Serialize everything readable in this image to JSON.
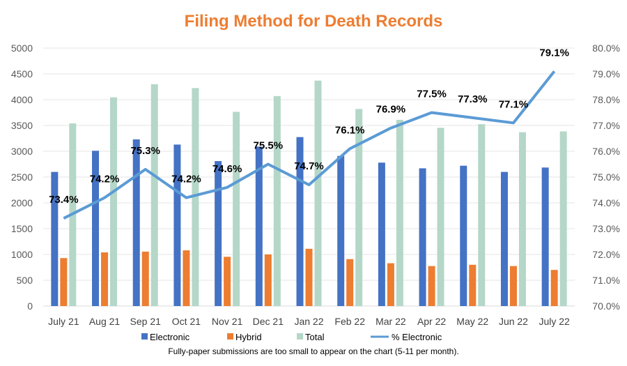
{
  "chart_data": {
    "type": "bar",
    "title": "Filing Method for Death Records",
    "footnote": "Fully-paper submissions are too small to appear on the chart (5-11 per month).",
    "categories": [
      "July 21",
      "Aug 21",
      "Sep 21",
      "Oct 21",
      "Nov 21",
      "Dec 21",
      "Jan 22",
      "Feb 22",
      "Mar 22",
      "Apr 22",
      "May 22",
      "Jun 22",
      "July 22"
    ],
    "series": [
      {
        "name": "Electronic",
        "type": "bar",
        "axis": "left",
        "color": "#4472C4",
        "values": [
          2600,
          3010,
          3230,
          3130,
          2810,
          3090,
          3275,
          2910,
          2780,
          2670,
          2720,
          2600,
          2685
        ]
      },
      {
        "name": "Hybrid",
        "type": "bar",
        "axis": "left",
        "color": "#ED7D31",
        "values": [
          930,
          1040,
          1055,
          1080,
          955,
          1000,
          1110,
          910,
          830,
          775,
          800,
          775,
          700
        ]
      },
      {
        "name": "Total",
        "type": "bar",
        "axis": "left",
        "color": "#B4D7C8",
        "values": [
          3540,
          4045,
          4300,
          4225,
          3765,
          4070,
          4370,
          3820,
          3610,
          3455,
          3525,
          3370,
          3385
        ]
      },
      {
        "name": "% Electronic",
        "type": "line",
        "axis": "right",
        "color": "#5B9BD5",
        "values": [
          73.4,
          74.2,
          75.3,
          74.2,
          74.6,
          75.5,
          74.7,
          76.1,
          76.9,
          77.5,
          77.3,
          77.1,
          79.1
        ],
        "labels": [
          "73.4%",
          "74.2%",
          "75.3%",
          "74.2%",
          "74.6%",
          "75.5%",
          "74.7%",
          "76.1%",
          "76.9%",
          "77.5%",
          "77.3%",
          "77.1%",
          "79.1%"
        ]
      }
    ],
    "y_left": {
      "min": 0,
      "max": 5000,
      "step": 500,
      "ticks": [
        "0",
        "500",
        "1000",
        "1500",
        "2000",
        "2500",
        "3000",
        "3500",
        "4000",
        "4500",
        "5000"
      ]
    },
    "y_right": {
      "min": 70,
      "max": 80,
      "step": 1,
      "ticks": [
        "70.0%",
        "71.0%",
        "72.0%",
        "73.0%",
        "74.0%",
        "75.0%",
        "76.0%",
        "77.0%",
        "78.0%",
        "79.0%",
        "80.0%"
      ]
    },
    "grid": true,
    "legend": "bottom",
    "title_color": "#ED7D31"
  }
}
